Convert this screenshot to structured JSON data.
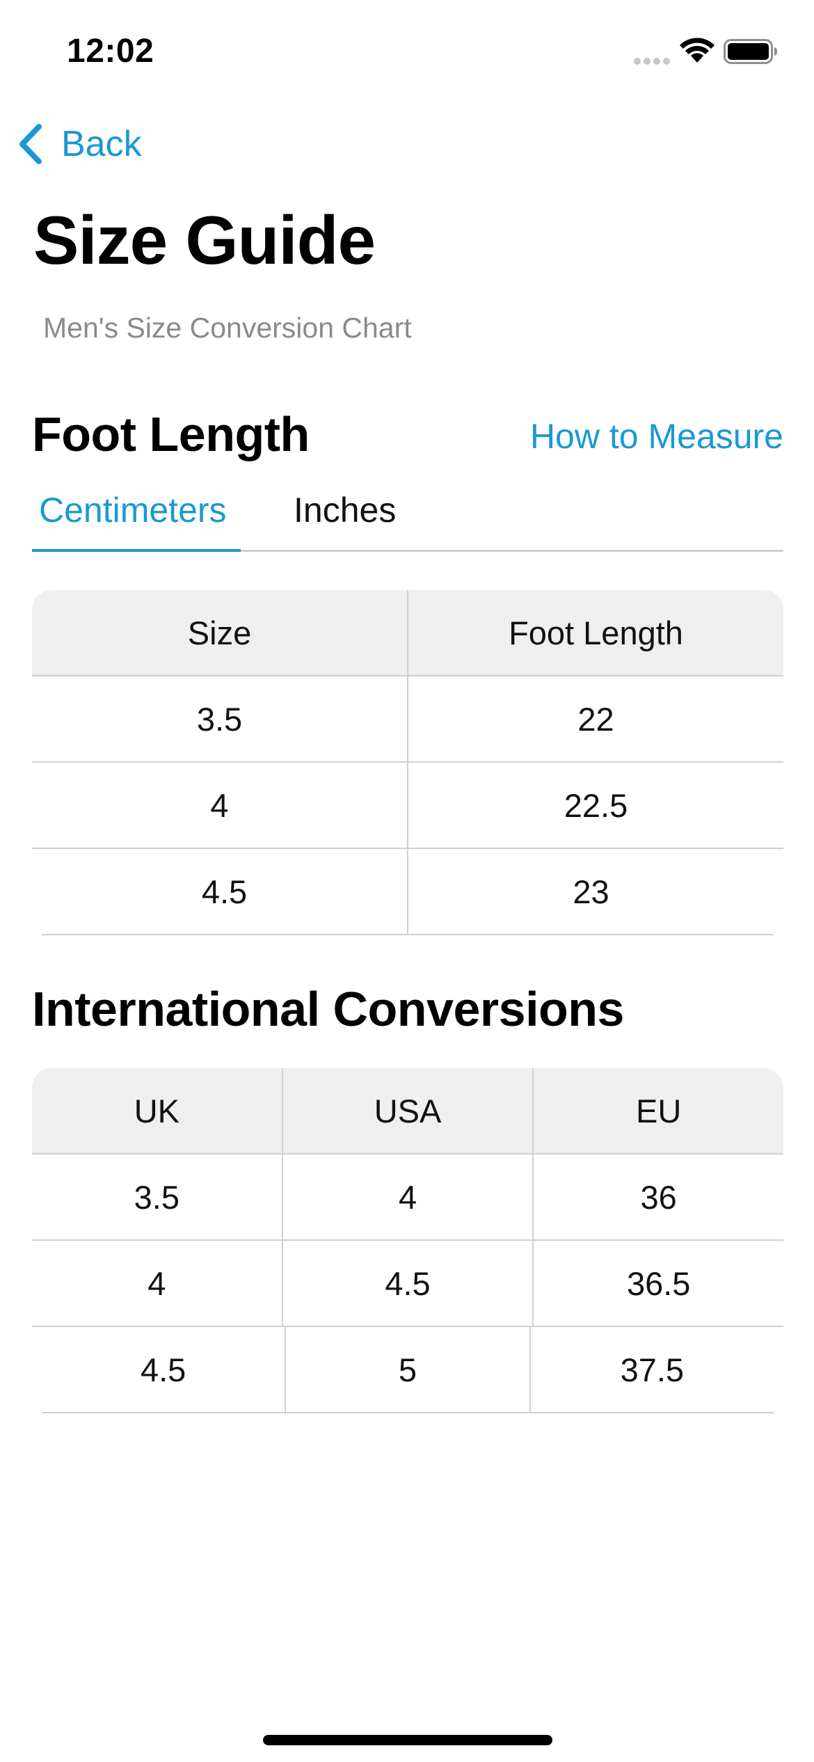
{
  "status_bar": {
    "time": "12:02",
    "icons": [
      "signal-icon",
      "wifi-icon",
      "battery-icon"
    ]
  },
  "nav": {
    "back_label": "Back",
    "back_icon": "chevron-left-icon"
  },
  "page": {
    "title": "Size Guide",
    "subtitle": "Men's Size Conversion Chart"
  },
  "foot_length": {
    "title": "Foot Length",
    "link_label": "How to Measure",
    "tabs": [
      {
        "label": "Centimeters",
        "selected": true
      },
      {
        "label": "Inches",
        "selected": false
      }
    ],
    "table": {
      "headers": [
        "Size",
        "Foot Length"
      ],
      "rows": [
        [
          "3.5",
          "22"
        ],
        [
          "4",
          "22.5"
        ],
        [
          "4.5",
          "23"
        ]
      ]
    }
  },
  "international": {
    "title": "International Conversions",
    "table": {
      "headers": [
        "UK",
        "USA",
        "EU"
      ],
      "rows": [
        [
          "3.5",
          "4",
          "36"
        ],
        [
          "4",
          "4.5",
          "36.5"
        ],
        [
          "4.5",
          "5",
          "37.5"
        ]
      ]
    }
  },
  "colors": {
    "accent": "#1a98d5",
    "header_bg": "#efefef",
    "divider": "#cfcfcf",
    "subtitle": "#8a8a8e"
  }
}
